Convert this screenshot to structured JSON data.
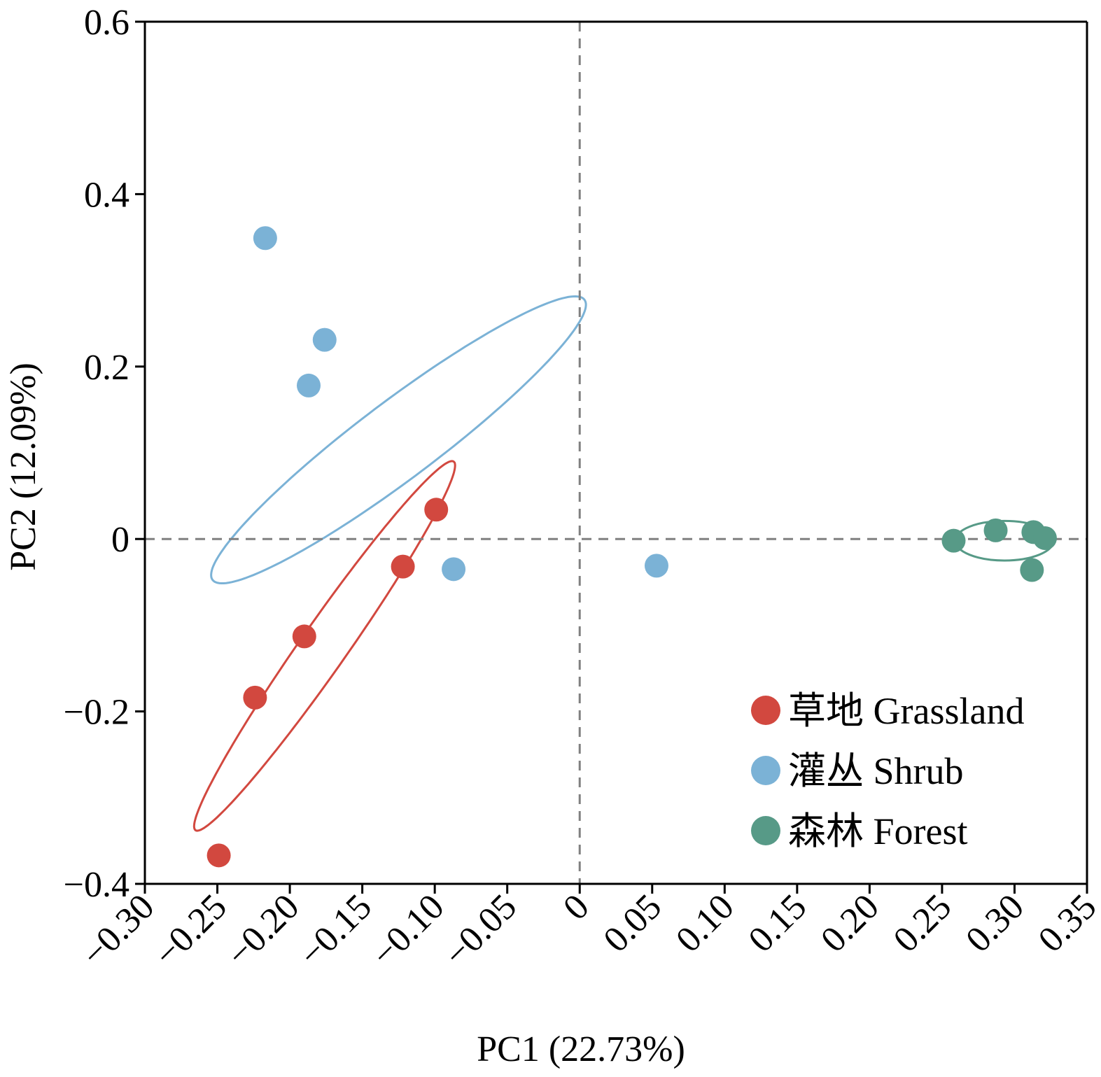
{
  "chart_data": {
    "type": "scatter",
    "title": "",
    "xlabel": "PC1 (22.73%)",
    "ylabel": "PC2 (12.09%)",
    "xlim": [
      -0.3,
      0.35
    ],
    "ylim": [
      -0.4,
      0.6
    ],
    "x_ticks": [
      -0.3,
      -0.25,
      -0.2,
      -0.15,
      -0.1,
      -0.05,
      0,
      0.05,
      0.1,
      0.15,
      0.2,
      0.25,
      0.3,
      0.35
    ],
    "x_tick_labels": [
      "−0.30",
      "−0.25",
      "−0.20",
      "−0.15",
      "−0.10",
      "−0.05",
      "0",
      "0.05",
      "0.10",
      "0.15",
      "0.20",
      "0.25",
      "0.30",
      "0.35"
    ],
    "y_ticks": [
      -0.4,
      -0.2,
      0,
      0.2,
      0.4,
      0.6
    ],
    "y_tick_labels": [
      "−0.4",
      "−0.2",
      "0",
      "0.2",
      "0.4",
      "0.6"
    ],
    "reference_lines": {
      "x": 0,
      "y": 0,
      "style": "dashed"
    },
    "grid": false,
    "legend_position": "bottom-right",
    "series": [
      {
        "name": "草地 Grassland",
        "color": "#d2483f",
        "points": [
          {
            "x": -0.249,
            "y": -0.367
          },
          {
            "x": -0.224,
            "y": -0.184
          },
          {
            "x": -0.19,
            "y": -0.113
          },
          {
            "x": -0.122,
            "y": -0.032
          },
          {
            "x": -0.099,
            "y": 0.034
          }
        ],
        "ellipse": {
          "cx": -0.176,
          "cy": -0.124,
          "rx": 0.29,
          "ry": 0.03,
          "angle_deg": 55
        }
      },
      {
        "name": "灌丛 Shrub",
        "color": "#7bb2d6",
        "points": [
          {
            "x": -0.217,
            "y": 0.349
          },
          {
            "x": -0.176,
            "y": 0.231
          },
          {
            "x": -0.187,
            "y": 0.178
          },
          {
            "x": -0.087,
            "y": -0.035
          },
          {
            "x": 0.053,
            "y": -0.031
          }
        ],
        "ellipse": {
          "cx": -0.125,
          "cy": 0.115,
          "rx": 0.3,
          "ry": 0.05,
          "angle_deg": 37
        }
      },
      {
        "name": "森林 Forest",
        "color": "#579a87",
        "points": [
          {
            "x": 0.258,
            "y": -0.002
          },
          {
            "x": 0.287,
            "y": 0.01
          },
          {
            "x": 0.313,
            "y": 0.008
          },
          {
            "x": 0.321,
            "y": 0.001
          },
          {
            "x": 0.312,
            "y": -0.036
          }
        ],
        "ellipse": {
          "cx": 0.293,
          "cy": -0.002,
          "rx": 0.034,
          "ry": 0.023,
          "angle_deg": 0
        }
      }
    ]
  }
}
